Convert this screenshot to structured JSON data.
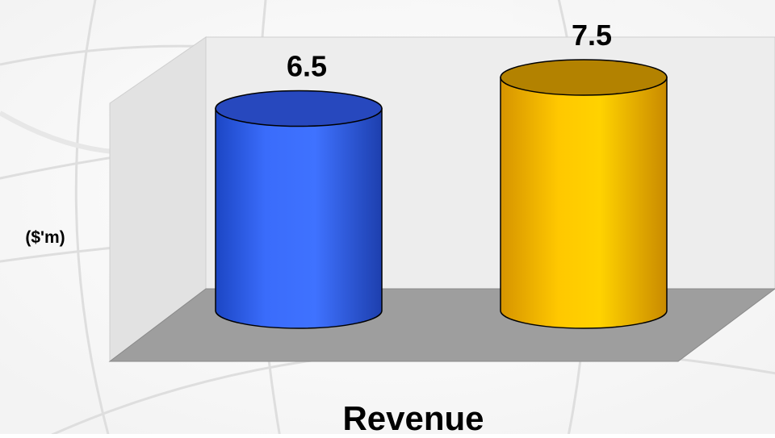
{
  "chart_data": {
    "type": "bar",
    "categories": [
      "",
      ""
    ],
    "series": [
      {
        "values": [
          6.5,
          7.5
        ]
      }
    ],
    "value_labels": [
      "6.5",
      "7.5"
    ],
    "xlabel": "Revenue",
    "ylabel": "($'m)",
    "title": "",
    "ylim": [
      0,
      7.5
    ],
    "grid": false,
    "legend": "none",
    "bar_shape": "3d-cylinder",
    "bar_colors": [
      "#2f62ef",
      "#f6c400"
    ],
    "wall_color": "#ececec",
    "floor_color": "#9c9c9c"
  }
}
